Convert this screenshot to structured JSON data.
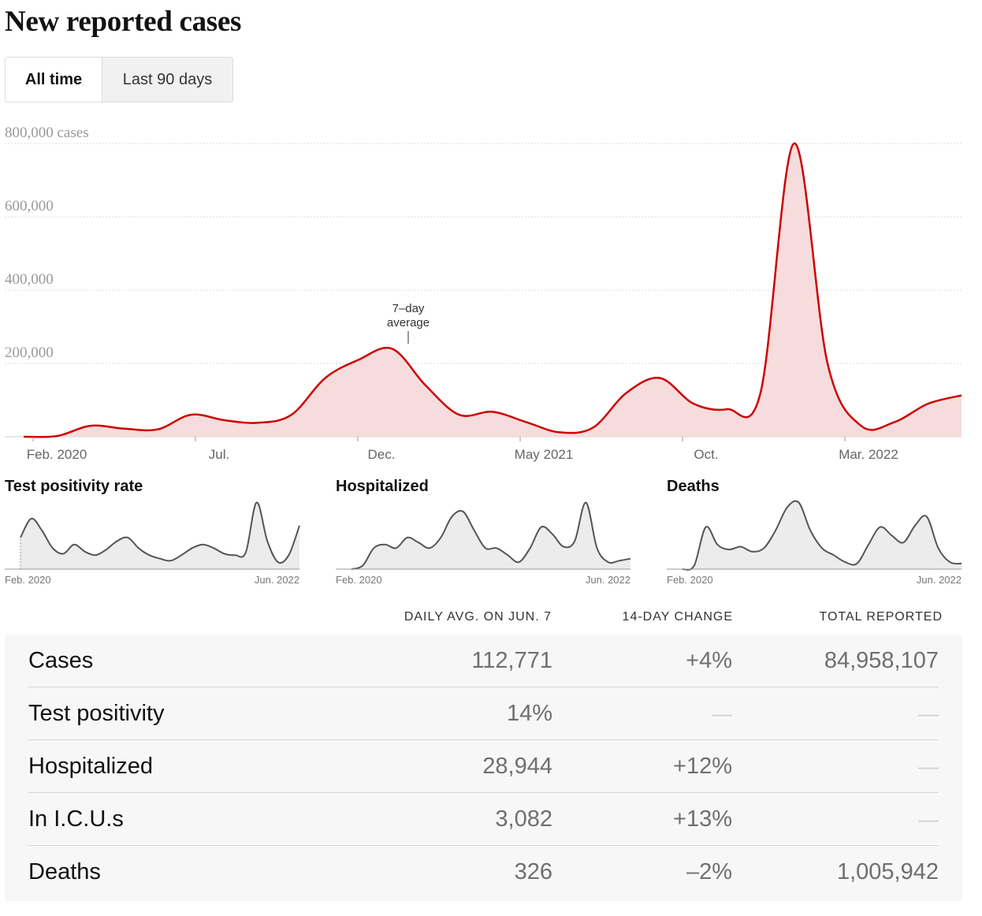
{
  "title": "New reported cases",
  "toggle": {
    "active": "All time",
    "inactive": "Last 90 days"
  },
  "colors": {
    "cases_line": "#cc0000",
    "cases_fill": "#f6dcdc",
    "mini_line": "#555555",
    "mini_fill": "#ececec"
  },
  "chart_data": [
    {
      "type": "area",
      "name": "main",
      "ylabel_unit": "cases",
      "yticks": [
        {
          "value": 800000,
          "label": "800,000 cases"
        },
        {
          "value": 600000,
          "label": "600,000"
        },
        {
          "value": 400000,
          "label": "400,000"
        },
        {
          "value": 200000,
          "label": "200,000"
        }
      ],
      "ylim": [
        0,
        800000
      ],
      "xticks": [
        "Feb. 2020",
        "Jul.",
        "Dec.",
        "May 2021",
        "Oct.",
        "Mar. 2022"
      ],
      "annotation": [
        "7–day",
        "average"
      ],
      "grid": true,
      "x": [
        "2020-02",
        "2020-03",
        "2020-04",
        "2020-05",
        "2020-06",
        "2020-07",
        "2020-08",
        "2020-09",
        "2020-10",
        "2020-11",
        "2020-12",
        "2021-01",
        "2021-02",
        "2021-03",
        "2021-04",
        "2021-05",
        "2021-06",
        "2021-07",
        "2021-08",
        "2021-09",
        "2021-10",
        "2021-11",
        "2021-12",
        "2022-01",
        "2022-02",
        "2022-03",
        "2022-04",
        "2022-05",
        "2022-06"
      ],
      "y": [
        0,
        2000,
        30000,
        22000,
        20000,
        60000,
        45000,
        38000,
        60000,
        160000,
        210000,
        240000,
        140000,
        60000,
        68000,
        40000,
        12000,
        25000,
        120000,
        160000,
        90000,
        75000,
        120000,
        800000,
        200000,
        30000,
        40000,
        90000,
        112771
      ]
    },
    {
      "type": "area",
      "name": "Test positivity rate",
      "xticks": [
        "Feb. 2020",
        "Jun. 2022"
      ],
      "y": [
        0.45,
        0.72,
        0.55,
        0.3,
        0.22,
        0.35,
        0.25,
        0.2,
        0.28,
        0.4,
        0.45,
        0.3,
        0.2,
        0.15,
        0.12,
        0.2,
        0.3,
        0.35,
        0.3,
        0.22,
        0.2,
        0.24,
        0.95,
        0.4,
        0.1,
        0.2,
        0.62
      ]
    },
    {
      "type": "area",
      "name": "Hospitalized",
      "xticks": [
        "Feb. 2020",
        "Jun. 2022"
      ],
      "y": [
        0,
        0.05,
        0.3,
        0.35,
        0.3,
        0.45,
        0.38,
        0.3,
        0.45,
        0.75,
        0.82,
        0.55,
        0.3,
        0.3,
        0.2,
        0.1,
        0.3,
        0.6,
        0.5,
        0.32,
        0.4,
        0.95,
        0.3,
        0.1,
        0.12,
        0.15
      ]
    },
    {
      "type": "area",
      "name": "Deaths",
      "xticks": [
        "Feb. 2020",
        "Jun. 2022"
      ],
      "y": [
        0,
        0.05,
        0.6,
        0.35,
        0.28,
        0.32,
        0.25,
        0.3,
        0.55,
        0.88,
        0.95,
        0.55,
        0.3,
        0.2,
        0.1,
        0.08,
        0.35,
        0.6,
        0.48,
        0.38,
        0.62,
        0.75,
        0.3,
        0.1,
        0.08
      ]
    }
  ],
  "table": {
    "headers": [
      "DAILY AVG. ON JUN. 7",
      "14-DAY CHANGE",
      "TOTAL REPORTED"
    ],
    "rows": [
      {
        "label": "Cases",
        "avg": "112,771",
        "change": "+4%",
        "total": "84,958,107"
      },
      {
        "label": "Test positivity",
        "avg": "14%",
        "change": "—",
        "total": "—"
      },
      {
        "label": "Hospitalized",
        "avg": "28,944",
        "change": "+12%",
        "total": "—"
      },
      {
        "label": "In I.C.U.s",
        "avg": "3,082",
        "change": "+13%",
        "total": "—"
      },
      {
        "label": "Deaths",
        "avg": "326",
        "change": "–2%",
        "total": "1,005,942"
      }
    ]
  }
}
